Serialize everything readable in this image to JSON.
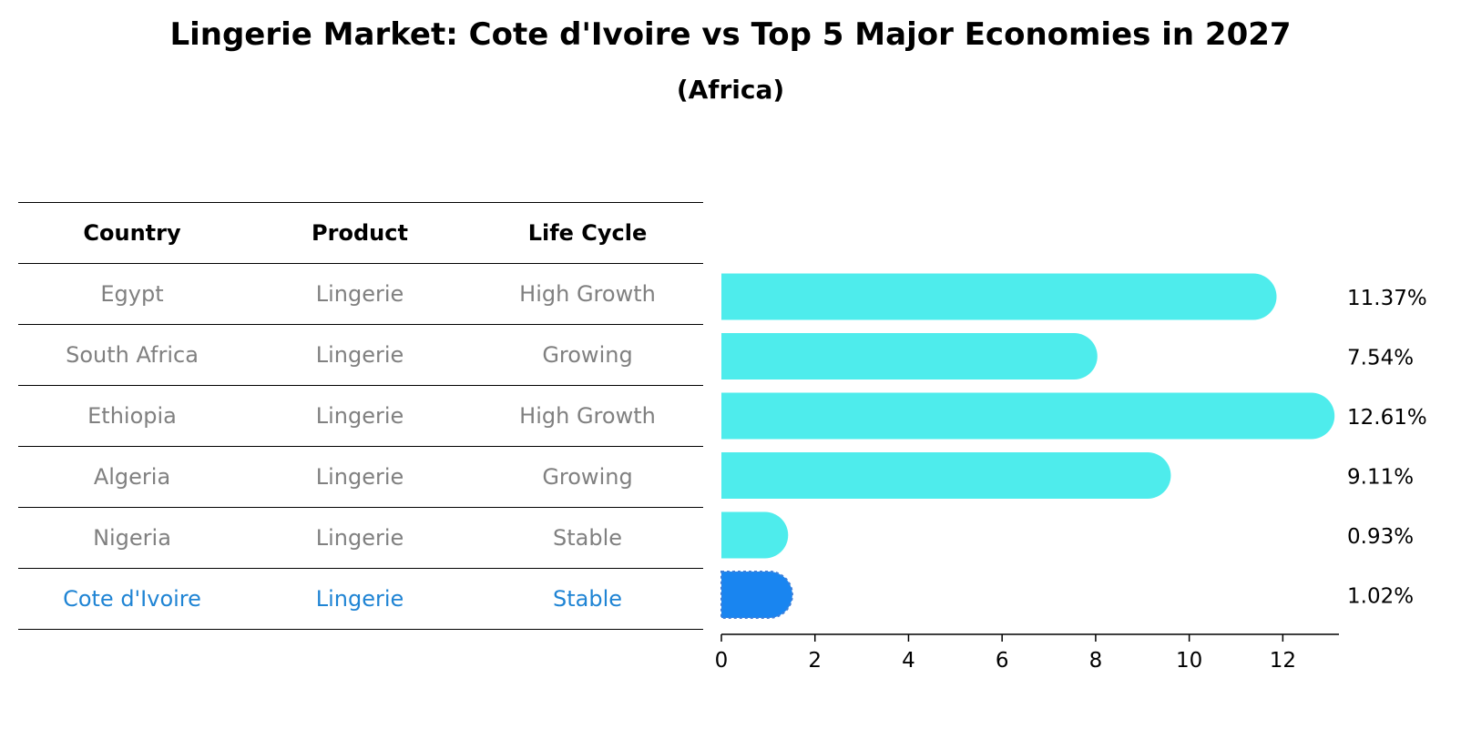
{
  "title": "Lingerie Market: Cote d'Ivoire vs Top 5 Major Economies in 2027",
  "subtitle": "(Africa)",
  "table": {
    "headers": [
      "Country",
      "Product",
      "Life Cycle"
    ],
    "rows": [
      {
        "country": "Egypt",
        "product": "Lingerie",
        "life_cycle": "High Growth"
      },
      {
        "country": "South Africa",
        "product": "Lingerie",
        "life_cycle": "Growing"
      },
      {
        "country": "Ethiopia",
        "product": "Lingerie",
        "life_cycle": "High Growth"
      },
      {
        "country": "Algeria",
        "product": "Lingerie",
        "life_cycle": "Growing"
      },
      {
        "country": "Nigeria",
        "product": "Lingerie",
        "life_cycle": "Stable"
      },
      {
        "country": "Cote d'Ivoire",
        "product": "Lingerie",
        "life_cycle": "Stable"
      }
    ]
  },
  "colors": {
    "bar": "#4EECEC",
    "highlight": "#1985F0",
    "muted_text": "#808080",
    "highlight_text": "#1F84D4"
  },
  "chart_data": {
    "type": "bar",
    "orientation": "horizontal",
    "categories": [
      "Egypt",
      "South Africa",
      "Ethiopia",
      "Algeria",
      "Nigeria",
      "Cote d'Ivoire"
    ],
    "values": [
      11.37,
      7.54,
      12.61,
      9.11,
      0.93,
      1.02
    ],
    "value_labels": [
      "11.37%",
      "7.54%",
      "12.61%",
      "9.11%",
      "0.93%",
      "1.02%"
    ],
    "highlight_category": "Cote d'Ivoire",
    "xticks": [
      0,
      2,
      4,
      6,
      8,
      10,
      12
    ],
    "xlim": [
      0,
      13.2
    ],
    "title": "Lingerie Market: Cote d'Ivoire vs Top 5 Major Economies in 2027",
    "xlabel": "",
    "ylabel": ""
  }
}
